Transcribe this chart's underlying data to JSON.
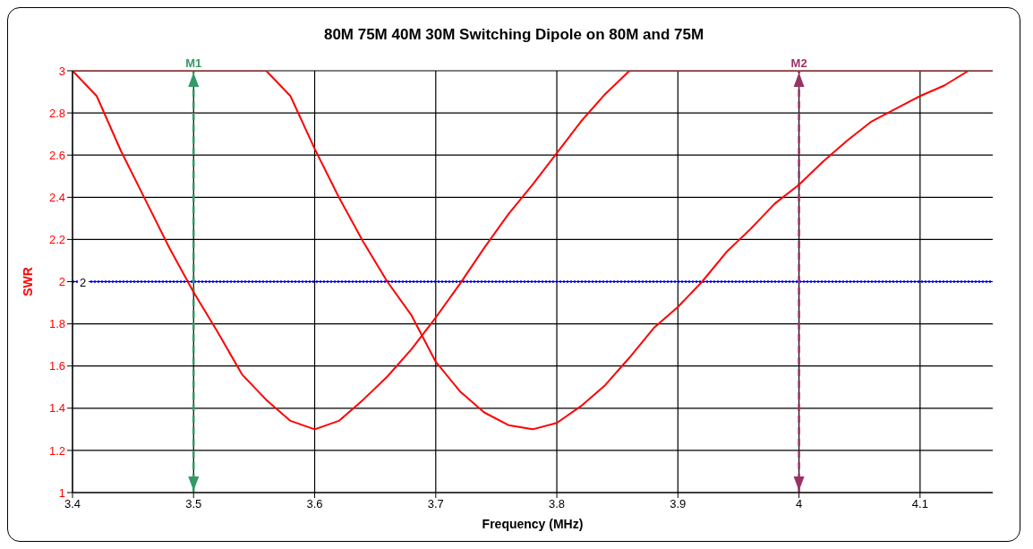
{
  "chart_data": {
    "type": "line",
    "title": "80M 75M 40M 30M Switching Dipole on 80M and 75M",
    "xlabel": "Frequency (MHz)",
    "ylabel": "SWR",
    "series": [
      {
        "color": "#ff0000",
        "x": [
          3.4,
          3.42,
          3.44,
          3.46,
          3.48,
          3.5,
          3.52,
          3.54,
          3.56,
          3.58,
          3.6,
          3.62,
          3.64,
          3.66,
          3.68,
          3.7,
          3.72,
          3.74,
          3.76,
          3.78,
          3.8,
          3.82,
          3.84,
          3.86,
          3.9,
          4.0,
          4.1,
          4.16
        ],
        "values": [
          3.0,
          2.88,
          2.62,
          2.39,
          2.16,
          1.95,
          1.76,
          1.56,
          1.44,
          1.34,
          1.3,
          1.34,
          1.44,
          1.55,
          1.68,
          1.83,
          1.99,
          2.16,
          2.32,
          2.46,
          2.61,
          2.76,
          2.89,
          3.0,
          3.0,
          3.0,
          3.0,
          3.0
        ]
      },
      {
        "color": "#ff0000",
        "x": [
          3.4,
          3.5,
          3.56,
          3.58,
          3.6,
          3.62,
          3.64,
          3.66,
          3.68,
          3.7,
          3.72,
          3.74,
          3.76,
          3.78,
          3.8,
          3.82,
          3.84,
          3.86,
          3.88,
          3.9,
          3.92,
          3.94,
          3.96,
          3.98,
          4.0,
          4.02,
          4.04,
          4.06,
          4.08,
          4.1,
          4.12,
          4.14,
          4.16
        ],
        "values": [
          3.0,
          3.0,
          3.0,
          2.88,
          2.63,
          2.4,
          2.19,
          2.0,
          1.84,
          1.62,
          1.48,
          1.38,
          1.32,
          1.3,
          1.33,
          1.41,
          1.51,
          1.64,
          1.78,
          1.88,
          2.0,
          2.14,
          2.25,
          2.37,
          2.46,
          2.57,
          2.67,
          2.76,
          2.82,
          2.88,
          2.93,
          3.0,
          3.0
        ]
      }
    ],
    "xlim": [
      3.4,
      4.16
    ],
    "xticks": [
      3.4,
      3.5,
      3.6,
      3.7,
      3.8,
      3.9,
      4,
      4.1
    ],
    "ylim": [
      1,
      3
    ],
    "yticks": [
      1,
      1.2,
      1.4,
      1.6,
      1.8,
      2,
      2.2,
      2.4,
      2.6,
      2.8,
      3
    ],
    "grid": true,
    "marker": "none",
    "line_style": "solid",
    "ref_lines": [
      {
        "axis": "y",
        "value": 2,
        "label": "2",
        "color": "#0000ff",
        "line_style": "dotted"
      },
      {
        "axis": "x",
        "value": 3.5,
        "label": "M1",
        "color": "#339966",
        "line_style": "dashed"
      },
      {
        "axis": "x",
        "value": 4,
        "label": "M2",
        "color": "#993366",
        "line_style": "dashed"
      }
    ]
  }
}
